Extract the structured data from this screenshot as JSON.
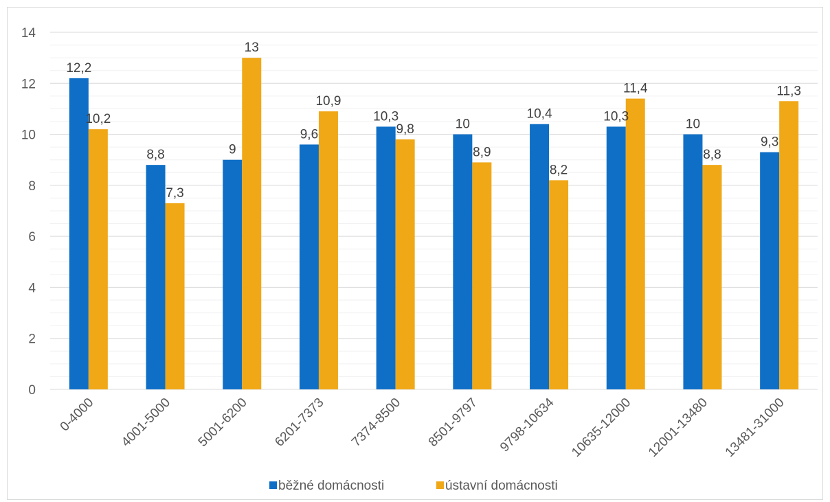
{
  "chart_data": {
    "type": "bar",
    "title": "",
    "xlabel": "",
    "ylabel": "",
    "ylim": [
      0,
      14
    ],
    "y_ticks": [
      "0",
      "2",
      "4",
      "6",
      "8",
      "10",
      "12",
      "14"
    ],
    "grid": true,
    "legend_position": "bottom",
    "categories": [
      "0-4000",
      "4001-5000",
      "5001-6200",
      "6201-7373",
      "7374-8500",
      "8501-9797",
      "9798-10634",
      "10635-12000",
      "12001-13480",
      "13481-31000"
    ],
    "series": [
      {
        "name": "běžné domácnosti",
        "color": "#0f6fc6",
        "values": [
          12.2,
          8.8,
          9,
          9.6,
          10.3,
          10,
          10.4,
          10.3,
          10,
          9.3
        ],
        "labels": [
          "12,2",
          "8,8",
          "9",
          "9,6",
          "10,3",
          "10",
          "10,4",
          "10,3",
          "10",
          "9,3"
        ]
      },
      {
        "name": "ústavní domácnosti",
        "color": "#f0a817",
        "values": [
          10.2,
          7.3,
          13,
          10.9,
          9.8,
          8.9,
          8.2,
          11.4,
          8.8,
          11.3
        ],
        "labels": [
          "10,2",
          "7,3",
          "13",
          "10,9",
          "9,8",
          "8,9",
          "8,2",
          "11,4",
          "8,8",
          "11,3"
        ]
      }
    ]
  }
}
